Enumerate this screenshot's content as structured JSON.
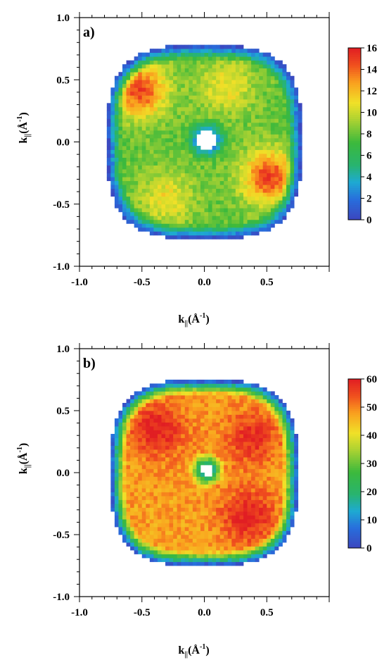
{
  "chart_data": [
    {
      "type": "heatmap",
      "panel_label": "a)",
      "xlabel": "k||(Å-1)",
      "ylabel": "k||(Å-1)",
      "xlim": [
        -1.0,
        1.0
      ],
      "ylim": [
        -1.0,
        1.0
      ],
      "x_ticks": [
        -1.0,
        -0.5,
        0.0,
        0.5
      ],
      "y_ticks": [
        1.0,
        0.5,
        0.0,
        -0.5,
        -1.0
      ],
      "colorbar": {
        "range": [
          0,
          16
        ],
        "ticks": [
          16,
          14,
          12,
          10,
          8,
          6,
          4,
          2,
          0
        ]
      },
      "grid": false,
      "colors": {
        "low": "#3a4fc4",
        "mid": "#35b24a",
        "high": "#e52222"
      },
      "description_of_distribution": {
        "outer_radius": 0.78,
        "hole_radius": 0.08,
        "background_level": 8,
        "hot_lobes": [
          {
            "x": -0.52,
            "y": 0.42,
            "level": 15
          },
          {
            "x": 0.52,
            "y": -0.28,
            "level": 15
          },
          {
            "x": 0.18,
            "y": 0.45,
            "level": 11
          },
          {
            "x": -0.3,
            "y": -0.45,
            "level": 11
          }
        ]
      }
    },
    {
      "type": "heatmap",
      "panel_label": "b)",
      "xlabel": "k||(Å-1)",
      "ylabel": "k||(Å-1)",
      "xlim": [
        -1.0,
        1.0
      ],
      "ylim": [
        -1.0,
        1.0
      ],
      "x_ticks": [
        -1.0,
        -0.5,
        0.0,
        0.5
      ],
      "y_ticks": [
        1.0,
        0.5,
        0.0,
        -0.5,
        -1.0
      ],
      "colorbar": {
        "range": [
          0,
          60
        ],
        "ticks": [
          60,
          50,
          40,
          30,
          20,
          10,
          0
        ]
      },
      "grid": false,
      "colors": {
        "low": "#3a4fc4",
        "mid": "#35b24a",
        "high": "#e52222"
      },
      "description_of_distribution": {
        "outer_radius": 0.75,
        "hole_radius": 0.05,
        "background_level": 48,
        "hot_lobes": [
          {
            "x": -0.38,
            "y": 0.35,
            "level": 60
          },
          {
            "x": 0.35,
            "y": -0.35,
            "level": 60
          },
          {
            "x": 0.38,
            "y": 0.28,
            "level": 58
          }
        ]
      }
    }
  ]
}
